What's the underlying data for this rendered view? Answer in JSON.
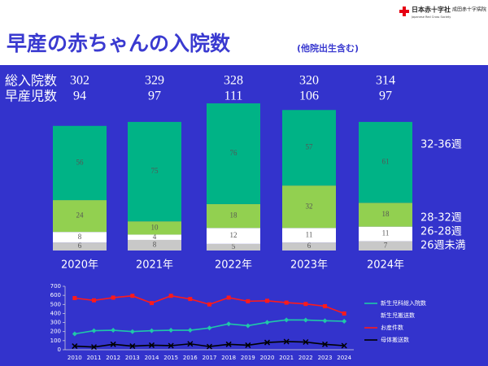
{
  "header": {
    "logo_name": "日本赤十字社",
    "logo_sub": "Japanese Red Cross Society",
    "hospital": "成田赤十字病院"
  },
  "title": "早産の赤ちゃんの入院数",
  "subtitle": "(他院出生含む)",
  "chart_data": [
    {
      "type": "stacked_bar",
      "categories": [
        "2020年",
        "2021年",
        "2022年",
        "2023年",
        "2024年"
      ],
      "summary_rows": [
        {
          "label": "総入院数",
          "values": [
            302,
            329,
            328,
            320,
            314
          ]
        },
        {
          "label": "早産児数",
          "values": [
            94,
            97,
            111,
            106,
            97
          ]
        }
      ],
      "series": [
        {
          "name": "26週未満",
          "color": "#c8c8c8",
          "values": [
            6,
            8,
            5,
            6,
            7
          ]
        },
        {
          "name": "26-28週",
          "color": "#ffffff",
          "values": [
            8,
            4,
            12,
            11,
            11
          ]
        },
        {
          "name": "28-32週",
          "color": "#92d050",
          "values": [
            24,
            10,
            18,
            32,
            18
          ]
        },
        {
          "name": "32-36週",
          "color": "#00b386",
          "values": [
            56,
            75,
            76,
            57,
            61
          ]
        }
      ]
    },
    {
      "type": "line",
      "categories": [
        2010,
        2011,
        2012,
        2013,
        2014,
        2015,
        2016,
        2017,
        2018,
        2019,
        2020,
        2021,
        2022,
        2023,
        2024
      ],
      "ylim": [
        0,
        700
      ],
      "yticks": [
        0,
        100,
        200,
        300,
        400,
        500,
        600,
        700
      ],
      "series": [
        {
          "name": "新生児科総入院数",
          "color": "#1fc8a8",
          "marker": "diamond",
          "values": [
            175,
            210,
            215,
            200,
            210,
            215,
            215,
            240,
            285,
            265,
            302,
            329,
            328,
            320,
            314
          ]
        },
        {
          "name": "新生児搬送数",
          "color": "#3333cc",
          "marker": "none",
          "values": [
            null,
            null,
            null,
            null,
            null,
            null,
            null,
            null,
            null,
            null,
            null,
            null,
            null,
            null,
            null
          ]
        },
        {
          "name": "お産件数",
          "color": "#ff1a1a",
          "marker": "square",
          "values": [
            570,
            545,
            575,
            595,
            515,
            595,
            560,
            500,
            575,
            535,
            540,
            520,
            505,
            480,
            400
          ]
        },
        {
          "name": "母体搬送数",
          "color": "#000000",
          "marker": "x",
          "values": [
            40,
            30,
            60,
            40,
            50,
            45,
            65,
            35,
            60,
            50,
            80,
            90,
            85,
            60,
            45
          ]
        }
      ]
    }
  ]
}
